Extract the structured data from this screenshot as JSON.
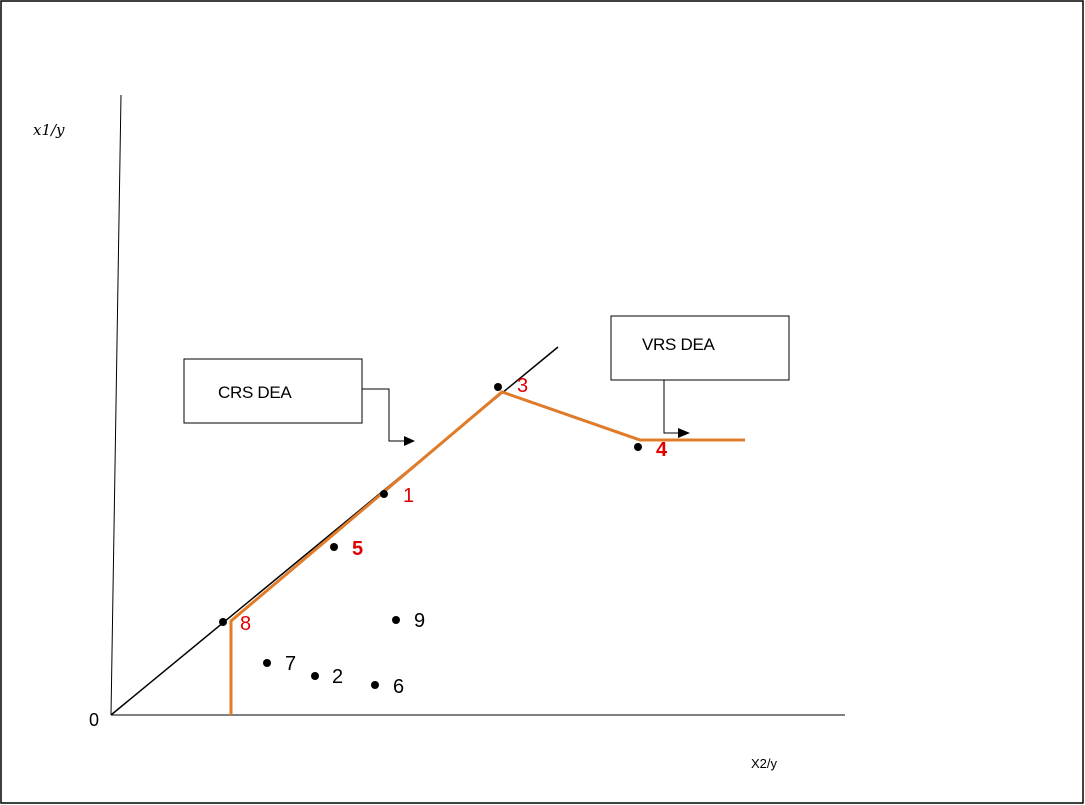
{
  "diagram": {
    "y_axis_label": "x1/y",
    "x_axis_label": "X2/y",
    "origin_label": "0",
    "crs_box_label": "CRS DEA",
    "vrs_box_label": "VRS DEA",
    "colors": {
      "frontier": "#e07b2a",
      "efficient_label": "#e00000",
      "inefficient_label": "#000000",
      "axis": "#000000"
    },
    "points": [
      {
        "id": "1",
        "label": "1",
        "efficient": true,
        "bold": false
      },
      {
        "id": "2",
        "label": "2",
        "efficient": false,
        "bold": false
      },
      {
        "id": "3",
        "label": "3",
        "efficient": true,
        "bold": false
      },
      {
        "id": "4",
        "label": "4",
        "efficient": true,
        "bold": true
      },
      {
        "id": "5",
        "label": "5",
        "efficient": true,
        "bold": true
      },
      {
        "id": "6",
        "label": "6",
        "efficient": false,
        "bold": false
      },
      {
        "id": "7",
        "label": "7",
        "efficient": false,
        "bold": false
      },
      {
        "id": "8",
        "label": "8",
        "efficient": true,
        "bold": false
      },
      {
        "id": "9",
        "label": "9",
        "efficient": false,
        "bold": false
      }
    ]
  }
}
